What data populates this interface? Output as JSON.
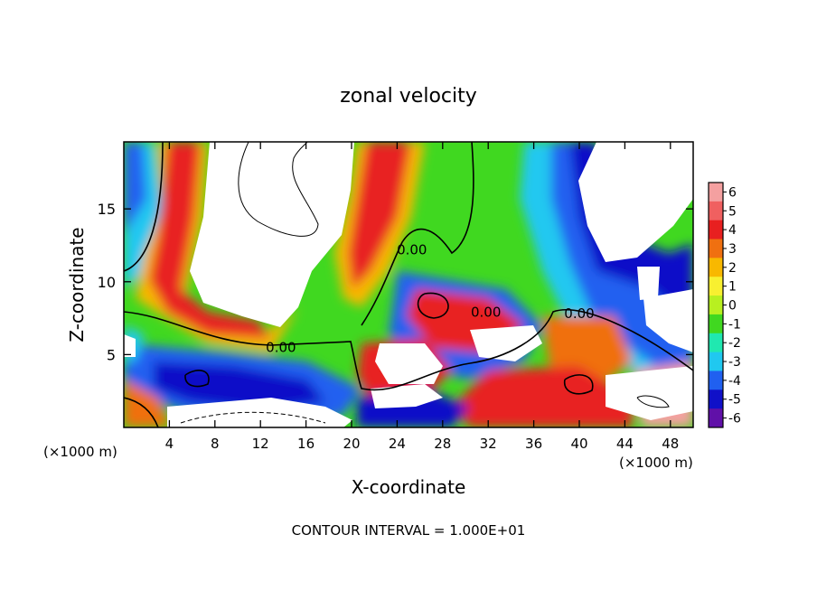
{
  "chart_data": {
    "type": "heatmap",
    "title": "zonal velocity",
    "xlabel": "X-coordinate",
    "ylabel": "Z-coordinate",
    "x_unit_label": "(×1000 m)",
    "x_unit_label_right": "(×1000 m)",
    "footer": "CONTOUR INTERVAL = 1.000E+01",
    "xlim": [
      0,
      50
    ],
    "ylim": [
      0,
      19.6
    ],
    "x_ticks": [
      4,
      8,
      12,
      16,
      20,
      24,
      28,
      32,
      36,
      40,
      44,
      48
    ],
    "y_ticks": [
      5,
      10,
      15
    ],
    "colorbar": {
      "range": [
        -6,
        6
      ],
      "ticks": [
        6,
        5,
        4,
        3,
        2,
        1,
        0,
        -1,
        -2,
        -3,
        -4,
        -5,
        -6
      ],
      "colors_top_to_bottom": [
        "#f4a0a0",
        "#f06060",
        "#e82020",
        "#f07010",
        "#f8b800",
        "#f8f030",
        "#b8f020",
        "#40d820",
        "#20e8b0",
        "#20c8f0",
        "#2060f0",
        "#1010c8",
        "#6010a8"
      ]
    },
    "contour_labels": [
      {
        "text": "0.00",
        "x": 13.8,
        "y": 5.5
      },
      {
        "text": "0.00",
        "x": 25.3,
        "y": 12.2
      },
      {
        "text": "0.00",
        "x": 31.8,
        "y": 7.9
      },
      {
        "text": "0.00",
        "x": 40.0,
        "y": 7.8
      }
    ],
    "grid": false
  }
}
